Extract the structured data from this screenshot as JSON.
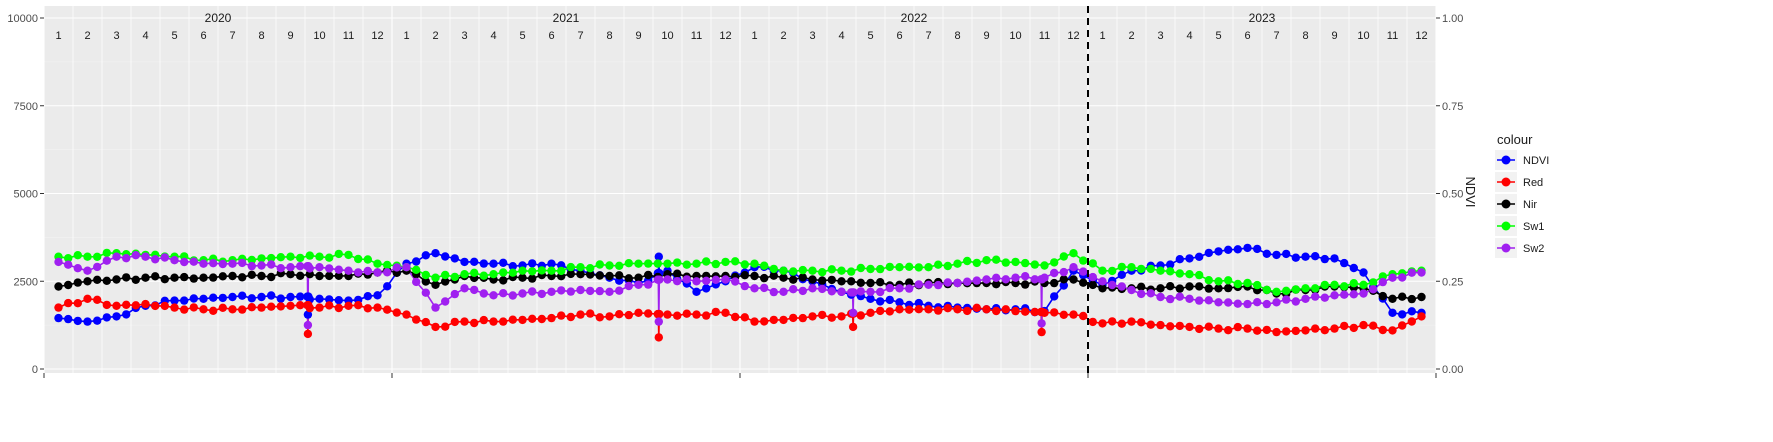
{
  "chart_data": {
    "type": "line",
    "xlabel": "",
    "ylabel": "",
    "y2label": "NDVI",
    "ylim": [
      0,
      10000
    ],
    "y2lim": [
      0,
      1
    ],
    "y_ticks": [
      "0",
      "2500",
      "5000",
      "7500",
      "10000"
    ],
    "y2_ticks": [
      "0.00",
      "0.25",
      "0.50",
      "0.75",
      "1.00"
    ],
    "years": [
      "2020",
      "2021",
      "2022",
      "2023"
    ],
    "months": [
      "1",
      "2",
      "3",
      "4",
      "5",
      "6",
      "7",
      "8",
      "9",
      "10",
      "11",
      "12"
    ],
    "vline_x": "2023-01",
    "grid": true,
    "legend": {
      "title": "colour",
      "position": "right"
    },
    "monthly_x": [
      "2020-01",
      "2020-02",
      "2020-03",
      "2020-04",
      "2020-05",
      "2020-06",
      "2020-07",
      "2020-08",
      "2020-09",
      "2020-10",
      "2020-11",
      "2020-12",
      "2021-01",
      "2021-02",
      "2021-03",
      "2021-04",
      "2021-05",
      "2021-06",
      "2021-07",
      "2021-08",
      "2021-09",
      "2021-10",
      "2021-11",
      "2021-12",
      "2022-01",
      "2022-02",
      "2022-03",
      "2022-04",
      "2022-05",
      "2022-06",
      "2022-07",
      "2022-08",
      "2022-09",
      "2022-10",
      "2022-11",
      "2022-12",
      "2023-01",
      "2023-02",
      "2023-03",
      "2023-04",
      "2023-05",
      "2023-06",
      "2023-07",
      "2023-08",
      "2023-09",
      "2023-10",
      "2023-11",
      "2023-12"
    ],
    "series": [
      {
        "name": "NDVI",
        "color": "#0000FF",
        "values": [
          1450,
          1350,
          1500,
          1800,
          1950,
          2000,
          2050,
          2050,
          2050,
          2000,
          1950,
          2100,
          3000,
          3300,
          3050,
          3000,
          2950,
          3000,
          2800,
          2600,
          2450,
          2800,
          2200,
          2500,
          2900,
          2800,
          2500,
          2200,
          2000,
          1900,
          1800,
          1750,
          1700,
          1700,
          1650,
          2800,
          2400,
          2800,
          2950,
          3150,
          3350,
          3450,
          3250,
          3200,
          3150,
          2750,
          1600,
          1600
        ]
      },
      {
        "name": "Red",
        "color": "#FF0000",
        "values": [
          1750,
          2000,
          1800,
          1850,
          1750,
          1700,
          1700,
          1750,
          1800,
          1750,
          1800,
          1750,
          1550,
          1200,
          1350,
          1350,
          1400,
          1450,
          1550,
          1500,
          1600,
          1550,
          1550,
          1600,
          1350,
          1400,
          1500,
          1500,
          1600,
          1700,
          1700,
          1700,
          1700,
          1650,
          1600,
          1550,
          1300,
          1350,
          1250,
          1200,
          1150,
          1150,
          1050,
          1100,
          1150,
          1250,
          1100,
          1500
        ]
      },
      {
        "name": "Nir",
        "color": "#000000",
        "values": [
          2350,
          2500,
          2550,
          2600,
          2600,
          2600,
          2650,
          2650,
          2700,
          2650,
          2650,
          2750,
          2800,
          2400,
          2650,
          2550,
          2600,
          2650,
          2700,
          2650,
          2600,
          2700,
          2650,
          2650,
          2650,
          2600,
          2550,
          2500,
          2450,
          2400,
          2450,
          2450,
          2450,
          2450,
          2450,
          2550,
          2300,
          2300,
          2300,
          2350,
          2300,
          2350,
          2150,
          2250,
          2350,
          2300,
          2000,
          2050
        ]
      },
      {
        "name": "Sw1",
        "color": "#00FF00",
        "values": [
          3200,
          3200,
          3300,
          3250,
          3200,
          3100,
          3100,
          3150,
          3200,
          3200,
          3250,
          3000,
          2900,
          2600,
          2700,
          2700,
          2800,
          2800,
          2900,
          2950,
          3000,
          3000,
          3000,
          3050,
          3000,
          2800,
          2800,
          2800,
          2850,
          2900,
          2900,
          3000,
          3100,
          3050,
          2950,
          3300,
          2800,
          2900,
          2800,
          2700,
          2500,
          2450,
          2200,
          2300,
          2400,
          2400,
          2700,
          2800
        ]
      },
      {
        "name": "Sw2",
        "color": "#A020F0",
        "values": [
          3050,
          2800,
          3200,
          3200,
          3100,
          3000,
          3000,
          2950,
          2900,
          2900,
          2800,
          2750,
          2900,
          1750,
          2300,
          2100,
          2150,
          2200,
          2250,
          2200,
          2400,
          2550,
          2500,
          2550,
          2300,
          2200,
          2300,
          2200,
          2200,
          2300,
          2400,
          2450,
          2550,
          2600,
          2600,
          2900,
          2500,
          2250,
          2050,
          2000,
          1900,
          1850,
          1900,
          2000,
          2100,
          2150,
          2600,
          2750
        ]
      }
    ],
    "dips": [
      {
        "series": "Red",
        "x": "2020-09.6",
        "value": 1000
      },
      {
        "series": "Sw2",
        "x": "2020-09.6",
        "value": 1250
      },
      {
        "series": "NDVI",
        "x": "2020-09.6",
        "value": 1550
      },
      {
        "series": "Red",
        "x": "2021-09.7",
        "value": 900
      },
      {
        "series": "Sw2",
        "x": "2021-09.7",
        "value": 1350
      },
      {
        "series": "NDVI",
        "x": "2021-09.7",
        "value": 3200
      },
      {
        "series": "Red",
        "x": "2022-04.4",
        "value": 1200
      },
      {
        "series": "Sw2",
        "x": "2022-04.4",
        "value": 1600
      },
      {
        "series": "Red",
        "x": "2022-10.9",
        "value": 1050
      },
      {
        "series": "Sw2",
        "x": "2022-10.9",
        "value": 1300
      }
    ]
  }
}
